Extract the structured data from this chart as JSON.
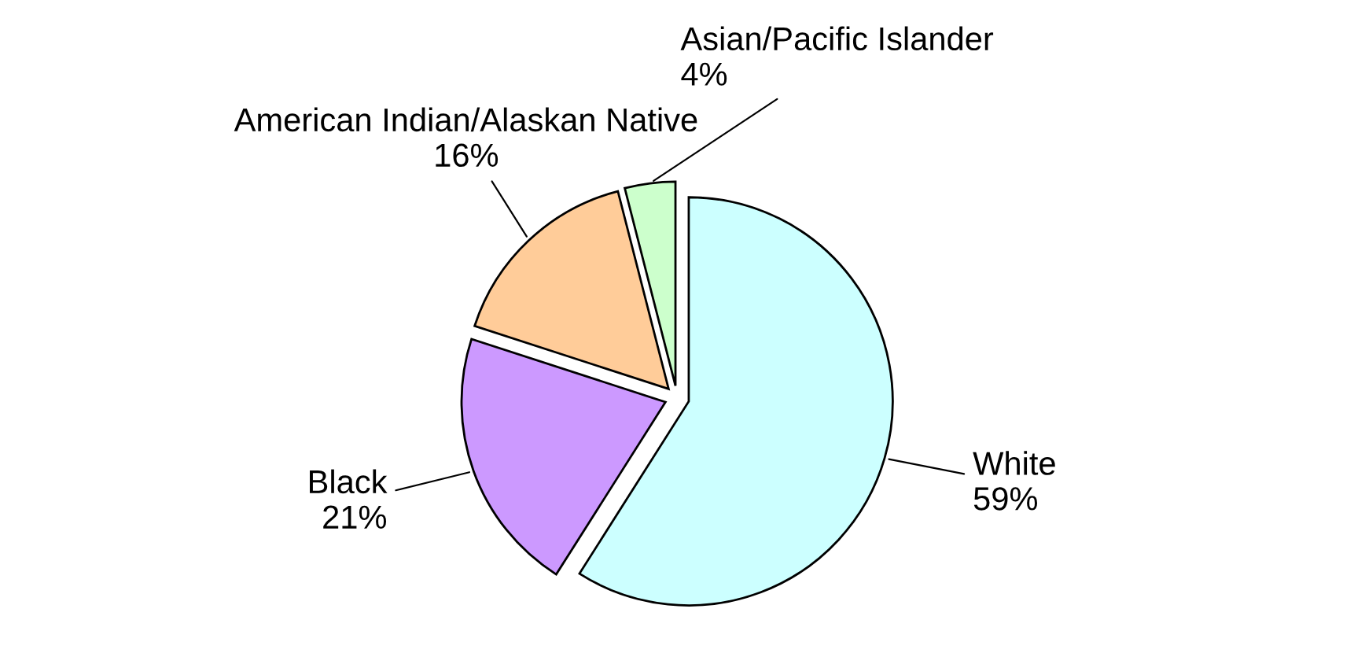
{
  "chart_data": {
    "type": "pie",
    "categories": [
      "White",
      "Black",
      "American Indian/Alaskan Native",
      "Asian/Pacific Islander"
    ],
    "values": [
      59,
      21,
      16,
      4
    ],
    "value_labels": [
      "59%",
      "21%",
      "16%",
      "4%"
    ],
    "colors": [
      "#ccffff",
      "#cc99ff",
      "#ffcc99",
      "#ccffcc"
    ]
  }
}
